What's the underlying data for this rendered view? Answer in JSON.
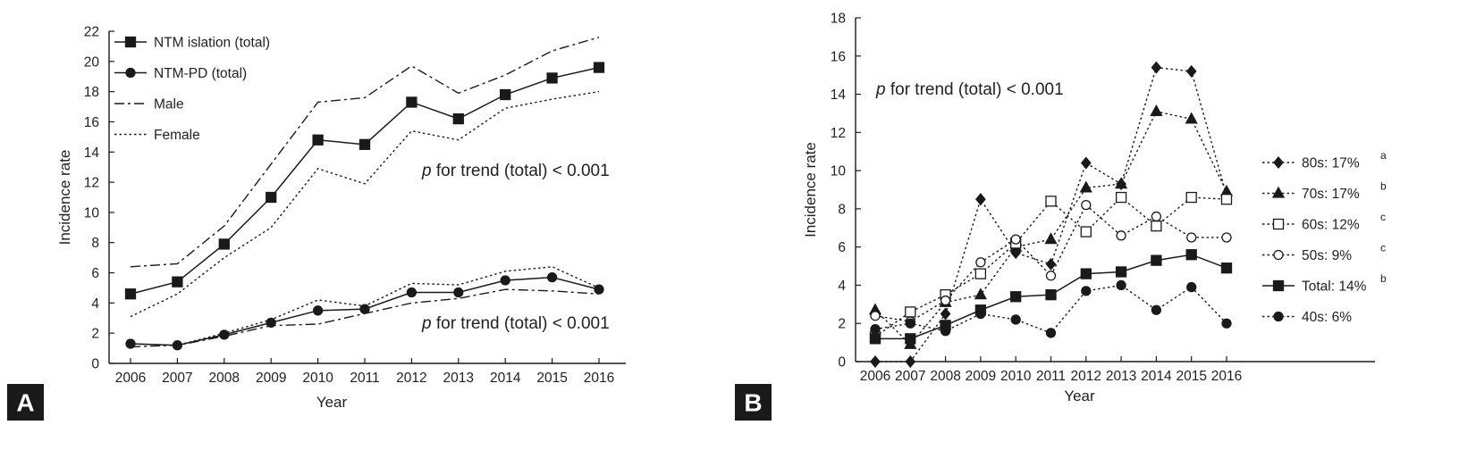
{
  "chart_data": [
    {
      "type": "line",
      "panel_label": "A",
      "title": "",
      "xlabel": "Year",
      "ylabel": "Incidence rate",
      "xlim": [
        2006,
        2016
      ],
      "ylim": [
        0,
        22
      ],
      "x": [
        2006,
        2007,
        2008,
        2009,
        2010,
        2011,
        2012,
        2013,
        2014,
        2015,
        2016
      ],
      "yticks": [
        0,
        2,
        4,
        6,
        8,
        10,
        12,
        14,
        16,
        18,
        20,
        22
      ],
      "grid": false,
      "legend_position": "top-left",
      "series": [
        {
          "id": "a_total_iso",
          "name": "NTM islation (total)",
          "line": "solid",
          "marker": "square",
          "legend": true,
          "values": [
            4.6,
            5.4,
            7.9,
            11.0,
            14.8,
            14.5,
            17.3,
            16.2,
            17.8,
            18.9,
            19.6
          ]
        },
        {
          "id": "a_total_pd",
          "name": "NTM-PD (total)",
          "line": "solid",
          "marker": "circle",
          "legend": true,
          "values": [
            1.3,
            1.2,
            1.9,
            2.7,
            3.5,
            3.6,
            4.7,
            4.7,
            5.5,
            5.7,
            4.9
          ]
        },
        {
          "id": "a_male_iso",
          "name": "Male",
          "line": "dashed",
          "marker": "none",
          "legend": true,
          "values": [
            6.4,
            6.6,
            9.1,
            13.2,
            17.3,
            17.6,
            19.7,
            17.9,
            19.1,
            20.7,
            21.6
          ]
        },
        {
          "id": "a_female_iso",
          "name": "Female",
          "line": "dotted",
          "marker": "none",
          "legend": true,
          "values": [
            3.1,
            4.6,
            7.0,
            9.0,
            12.9,
            11.9,
            15.4,
            14.8,
            16.9,
            17.5,
            18.0
          ]
        },
        {
          "id": "a_male_pd",
          "name": "Male (NTM-PD)",
          "line": "dashed",
          "marker": "none",
          "legend": false,
          "values": [
            1.1,
            1.2,
            1.8,
            2.5,
            2.6,
            3.3,
            4.0,
            4.3,
            4.9,
            4.8,
            4.6
          ]
        },
        {
          "id": "a_female_pd",
          "name": "Female (NTM-PD)",
          "line": "dotted",
          "marker": "none",
          "legend": false,
          "values": [
            1.3,
            1.2,
            2.0,
            2.9,
            4.2,
            3.8,
            5.3,
            5.2,
            6.1,
            6.4,
            5.0
          ]
        }
      ],
      "annotations": [
        {
          "text_prefix": "p",
          "text": " for trend (total) < 0.001",
          "near": "upper series"
        },
        {
          "text_prefix": "p",
          "text": " for trend (total) < 0.001",
          "near": "lower series"
        }
      ]
    },
    {
      "type": "line",
      "panel_label": "B",
      "title": "",
      "xlabel": "Year",
      "ylabel": "Incidence rate",
      "xlim": [
        2006,
        2016
      ],
      "ylim": [
        0,
        18
      ],
      "x": [
        2006,
        2007,
        2008,
        2009,
        2010,
        2011,
        2012,
        2013,
        2014,
        2015,
        2016
      ],
      "yticks": [
        0,
        2,
        4,
        6,
        8,
        10,
        12,
        14,
        16,
        18
      ],
      "grid": false,
      "legend_position": "right",
      "series": [
        {
          "id": "b_80s",
          "name": "80s: 17%",
          "sup": "a",
          "line": "dotted",
          "marker": "diamond",
          "fill": true,
          "values": [
            0,
            0,
            2.5,
            8.5,
            5.7,
            5.1,
            10.4,
            9.3,
            15.4,
            15.2,
            8.7
          ]
        },
        {
          "id": "b_70s",
          "name": "70s: 17%",
          "sup": "b",
          "line": "dotted",
          "marker": "triangle",
          "fill": true,
          "values": [
            2.7,
            0.9,
            3.1,
            3.5,
            6.0,
            6.4,
            9.1,
            9.3,
            13.1,
            12.7,
            8.9
          ]
        },
        {
          "id": "b_60s",
          "name": "60s: 12%",
          "sup": "c",
          "line": "dotted",
          "marker": "square",
          "fill": false,
          "values": [
            1.3,
            2.6,
            3.5,
            4.6,
            6.2,
            8.4,
            6.8,
            8.6,
            7.1,
            8.6,
            8.5
          ]
        },
        {
          "id": "b_50s",
          "name": "50s: 9%",
          "sup": "c",
          "line": "dotted",
          "marker": "circle",
          "fill": false,
          "values": [
            2.4,
            2.1,
            3.2,
            5.2,
            6.4,
            4.5,
            8.2,
            6.6,
            7.6,
            6.5,
            6.5
          ]
        },
        {
          "id": "b_total",
          "name": "Total: 14%",
          "sup": "b",
          "line": "solid",
          "marker": "square",
          "fill": true,
          "values": [
            1.2,
            1.2,
            1.9,
            2.7,
            3.4,
            3.5,
            4.6,
            4.7,
            5.3,
            5.6,
            4.9
          ]
        },
        {
          "id": "b_40s",
          "name": "40s: 6%",
          "sup": "",
          "line": "dotted",
          "marker": "circle",
          "fill": true,
          "values": [
            1.7,
            2.0,
            1.6,
            2.5,
            2.2,
            1.5,
            3.7,
            4.0,
            2.7,
            3.9,
            2.0
          ]
        }
      ],
      "annotations": [
        {
          "text_prefix": "p",
          "text": " for trend (total) < 0.001",
          "near": "top-left"
        }
      ]
    }
  ]
}
